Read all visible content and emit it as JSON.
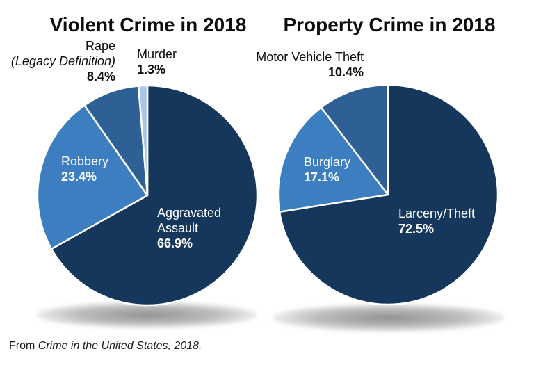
{
  "page": {
    "background_color": "#ffffff",
    "text_color": "#0d0d0d"
  },
  "colors": {
    "dark_navy": "#16375c",
    "medium_blue": "#2e6095",
    "light_blue": "#3d7ec0",
    "pale_blue": "#a9c6e8",
    "slice_border": "#ffffff",
    "inside_label": "#ffffff",
    "outside_label": "#0d0d0d"
  },
  "chart_data": [
    {
      "type": "pie",
      "title": "Violent Crime in 2018",
      "start_angle_deg": 0,
      "direction": "clockwise",
      "legend_position": "none",
      "slices": [
        {
          "label": "Aggravated Assault",
          "value": 66.9,
          "pct_label": "66.9%",
          "lines": [
            "Aggravated",
            "Assault"
          ],
          "color": "#16375c",
          "label_placement": "inside"
        },
        {
          "label": "Robbery",
          "value": 23.4,
          "pct_label": "23.4%",
          "lines": [
            "Robbery"
          ],
          "color": "#3d7ec0",
          "label_placement": "inside"
        },
        {
          "label": "Rape (Legacy Definition)",
          "value": 8.4,
          "pct_label": "8.4%",
          "lines": [
            "Rape",
            "(Legacy Definition)"
          ],
          "color": "#2e6095",
          "label_placement": "outside"
        },
        {
          "label": "Murder",
          "value": 1.3,
          "pct_label": "1.3%",
          "lines": [
            "Murder"
          ],
          "color": "#a9c6e8",
          "label_placement": "outside"
        }
      ]
    },
    {
      "type": "pie",
      "title": "Property Crime in 2018",
      "start_angle_deg": 0,
      "direction": "clockwise",
      "legend_position": "none",
      "slices": [
        {
          "label": "Larceny/Theft",
          "value": 72.5,
          "pct_label": "72.5%",
          "lines": [
            "Larceny/Theft"
          ],
          "color": "#16375c",
          "label_placement": "inside"
        },
        {
          "label": "Burglary",
          "value": 17.1,
          "pct_label": "17.1%",
          "lines": [
            "Burglary"
          ],
          "color": "#3d7ec0",
          "label_placement": "inside"
        },
        {
          "label": "Motor Vehicle Theft",
          "value": 10.4,
          "pct_label": "10.4%",
          "lines": [
            "Motor Vehicle Theft"
          ],
          "color": "#2e6095",
          "label_placement": "outside"
        }
      ]
    }
  ],
  "caption": {
    "prefix": "From ",
    "source": "Crime in the United States, 2018."
  }
}
